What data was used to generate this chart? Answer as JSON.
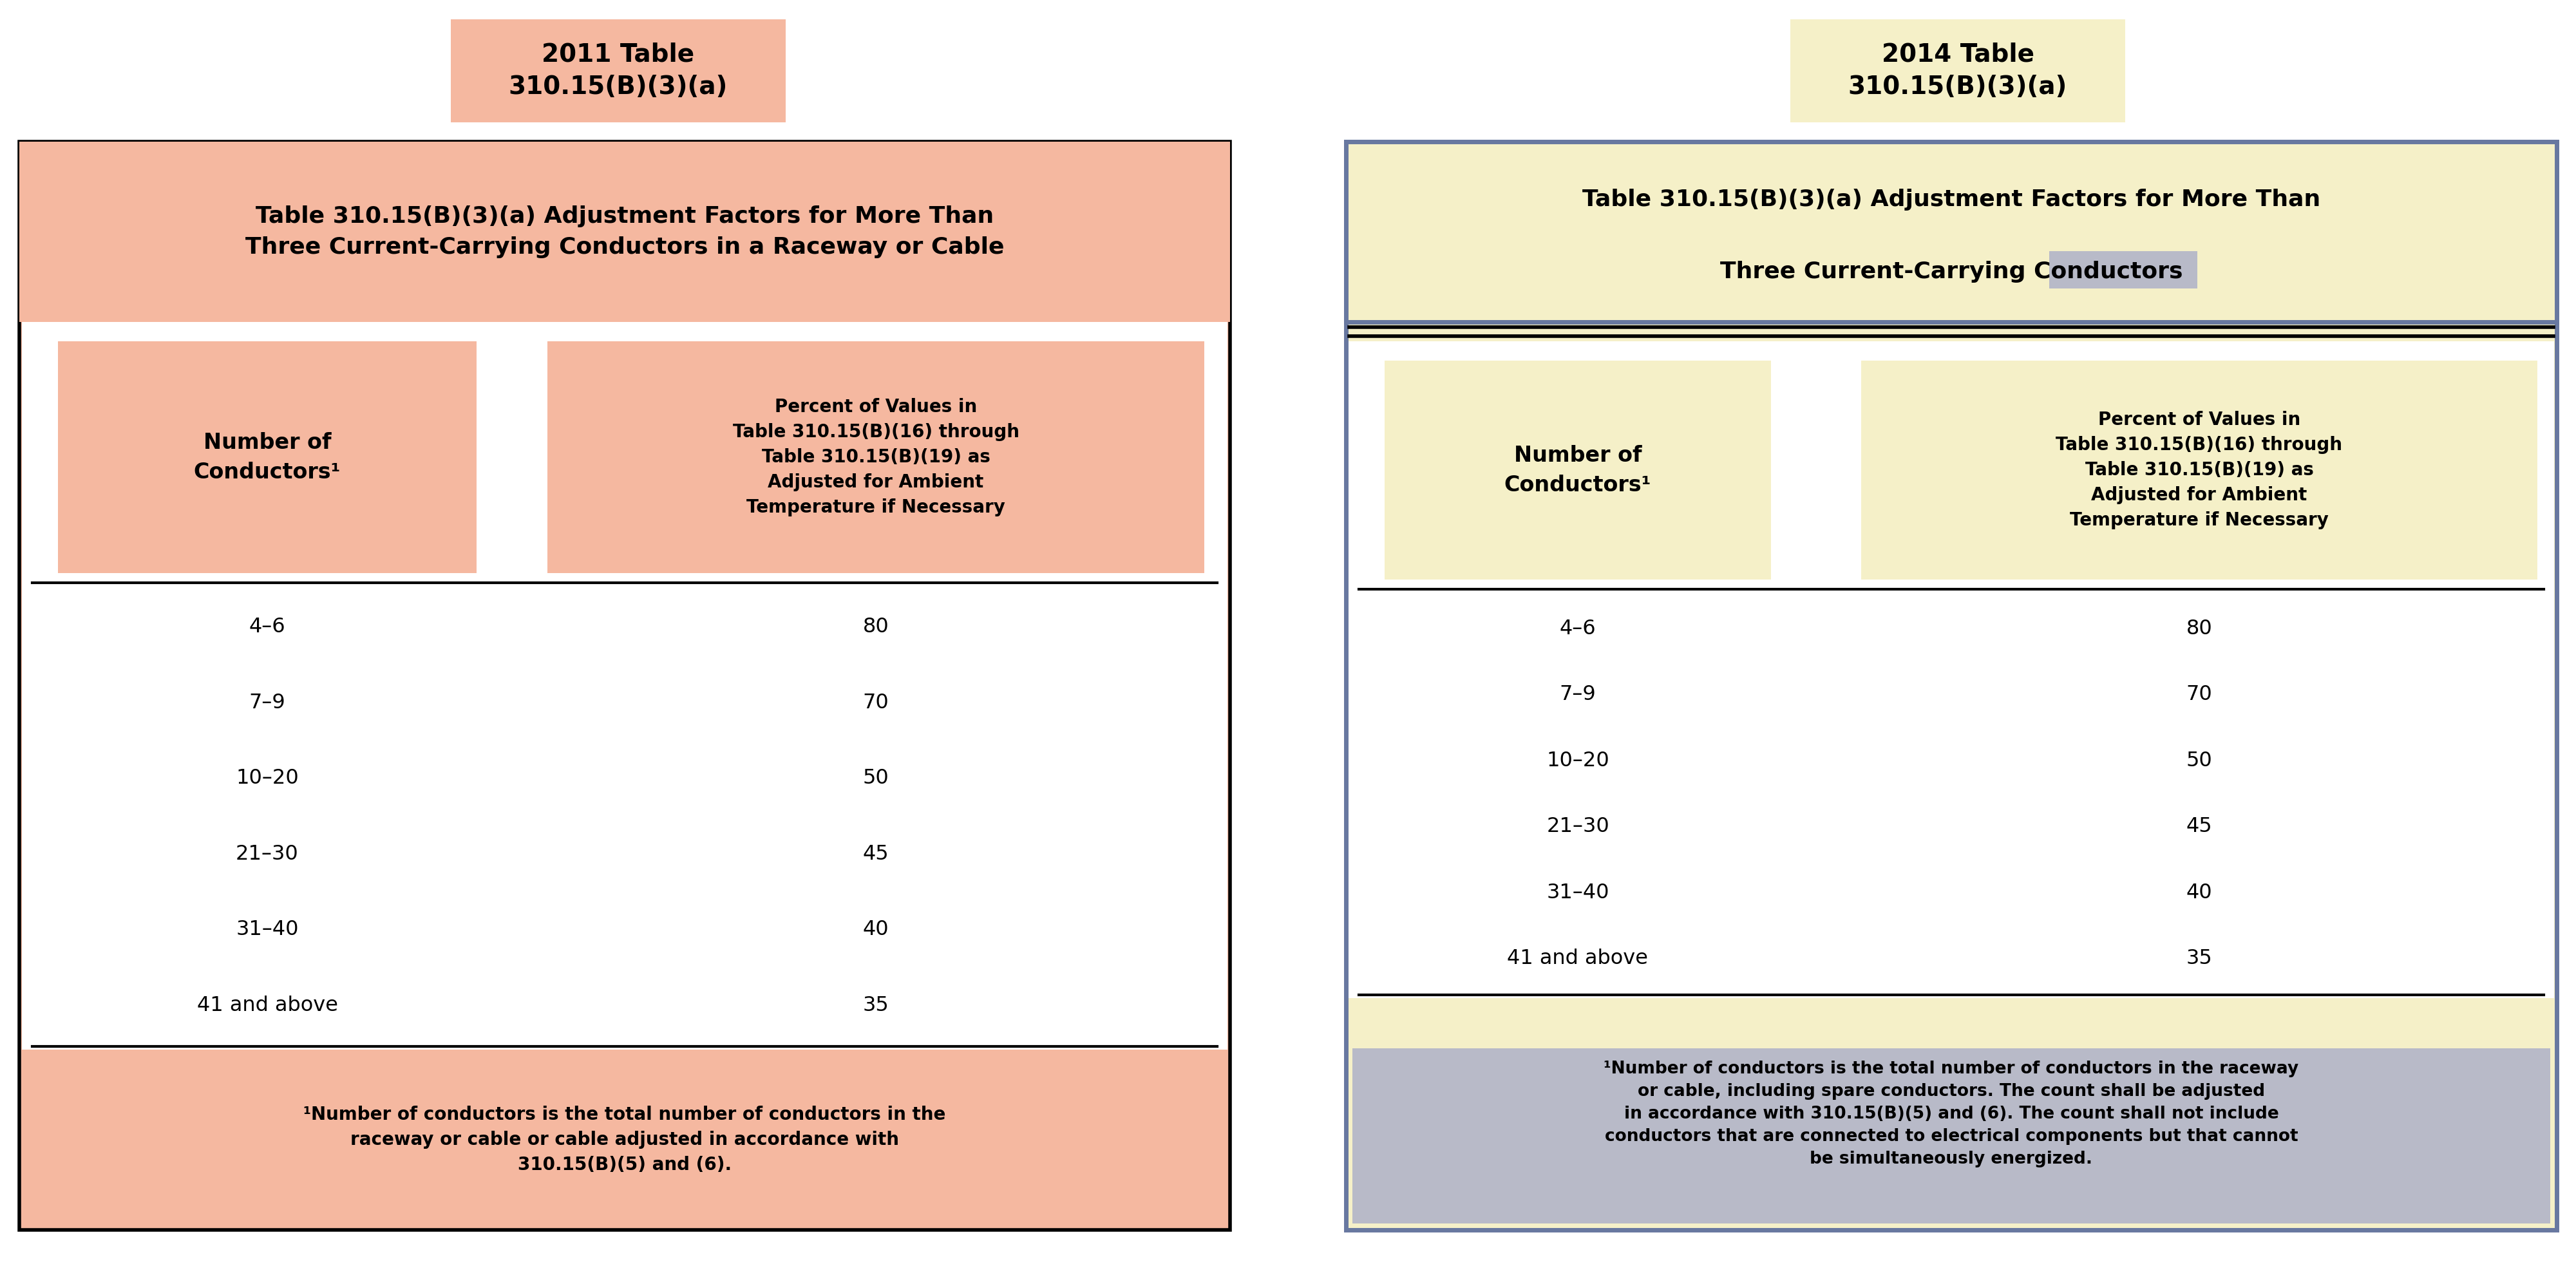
{
  "fig_width": 40.0,
  "fig_height": 19.94,
  "bg_color": "#ffffff",
  "left_table": {
    "title_box_color": "#f5b8a0",
    "title_box_text": "2011 Table\n310.15(B)(3)(a)",
    "outer_box_color": "#f5b8a0",
    "outer_box_border": "#000000",
    "header_title": "Table 310.15(B)(3)(a) Adjustment Factors for More Than\nThree Current-Carrying Conductors in a Raceway or Cable",
    "col1_header_text": "Number of\nConductors¹",
    "col2_header_text": "Percent of Values in\nTable 310.15(B)(16) through\nTable 310.15(B)(19) as\nAdjusted for Ambient\nTemperature if Necessary",
    "rows": [
      [
        "4–6",
        "80"
      ],
      [
        "7–9",
        "70"
      ],
      [
        "10–20",
        "50"
      ],
      [
        "21–30",
        "45"
      ],
      [
        "31–40",
        "40"
      ],
      [
        "41 and above",
        "35"
      ]
    ],
    "footnote_text": "¹Number of conductors is the total number of conductors in the\nraceway or cable or cable adjusted in accordance with\n310.15(B)(5) and (6)."
  },
  "right_table": {
    "title_box_color": "#f5f0c8",
    "title_box_text": "2014 Table\n310.15(B)(3)(a)",
    "outer_box_color": "#f5f0c8",
    "outer_box_border": "#6878a0",
    "header_title_line1": "Table 310.15(B)(3)(a) Adjustment Factors for More Than",
    "header_title_line2_plain": "Three Current-Carrying ",
    "header_title_line2_highlight": "Conductors",
    "highlight_color": "#b8bac8",
    "col1_header_text": "Number of\nConductors¹",
    "col2_header_text": "Percent of Values in\nTable 310.15(B)(16) through\nTable 310.15(B)(19) as\nAdjusted for Ambient\nTemperature if Necessary",
    "rows": [
      [
        "4–6",
        "80"
      ],
      [
        "7–9",
        "70"
      ],
      [
        "10–20",
        "50"
      ],
      [
        "21–30",
        "45"
      ],
      [
        "31–40",
        "40"
      ],
      [
        "41 and above",
        "35"
      ]
    ],
    "footnote_line1": "¹Number of conductors is the total number of conductors in the raceway",
    "footnote_line2_plain": "or cable, ",
    "footnote_line2_highlight": "including spare conductors. The count shall be adjusted",
    "footnote_line3_highlight": "in accordance with 310.15(B)(5) and (6). The count shall not include",
    "footnote_line4_highlight": "conductors that are connected to electrical components but that cannot",
    "footnote_line5_highlight": "be simultaneously energized."
  }
}
